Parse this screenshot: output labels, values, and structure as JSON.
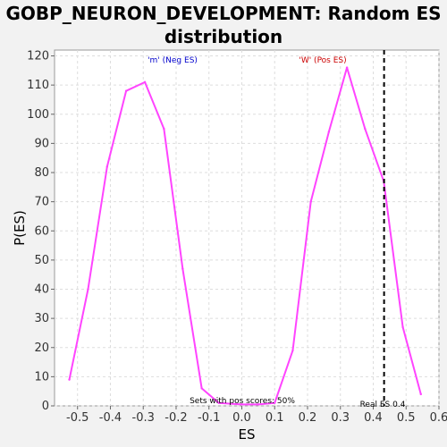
{
  "chart_data": {
    "type": "line",
    "title_lines": [
      "GOBP_NEURON_DEVELOPMENT: Random ES",
      "distribution"
    ],
    "xlabel": "ES",
    "ylabel": "P(ES)",
    "xlim": [
      -0.57,
      0.6
    ],
    "ylim": [
      0,
      122
    ],
    "xticks": [
      -0.5,
      -0.4,
      -0.3,
      -0.2,
      -0.1,
      0.0,
      0.1,
      0.2,
      0.3,
      0.4,
      0.5,
      0.6
    ],
    "xtick_labels": [
      "-0.5",
      "-0.4",
      "-0.3",
      "-0.2",
      "-0.1",
      "0.0",
      "0.1",
      "0.2",
      "0.3",
      "0.4",
      "0.5",
      "0.6"
    ],
    "yticks": [
      0,
      10,
      20,
      30,
      40,
      50,
      60,
      70,
      80,
      90,
      100,
      110,
      120
    ],
    "ytick_labels": [
      "0",
      "10",
      "20",
      "30",
      "40",
      "50",
      "60",
      "70",
      "80",
      "90",
      "100",
      "110",
      "120"
    ],
    "grid": true,
    "series": [
      {
        "color": "#ff44ff",
        "x": [
          -0.525,
          -0.468,
          -0.41,
          -0.352,
          -0.295,
          -0.237,
          -0.18,
          -0.122,
          -0.07,
          0.0,
          0.05,
          0.1,
          0.155,
          0.21,
          0.265,
          0.32,
          0.375,
          0.432,
          0.49,
          0.545
        ],
        "y": [
          9,
          40,
          82,
          108,
          111,
          95,
          47,
          6,
          1,
          0.5,
          0.5,
          1,
          19,
          70,
          94,
          116,
          95,
          77,
          27,
          4
        ]
      }
    ],
    "real_es": 0.433,
    "annotations": {
      "neg_label": "'m' (Neg ES)",
      "pos_label": "'W' (Pos ES)",
      "sets_label": "Sets with pos scores: 50%",
      "real_es_label": "Real ES 0.4"
    },
    "colors": {
      "curve": "#ff44ff",
      "neg_label": "#0000cc",
      "pos_label": "#cc0000",
      "real_es_line": "#000000",
      "grid": "#dddddd"
    }
  }
}
